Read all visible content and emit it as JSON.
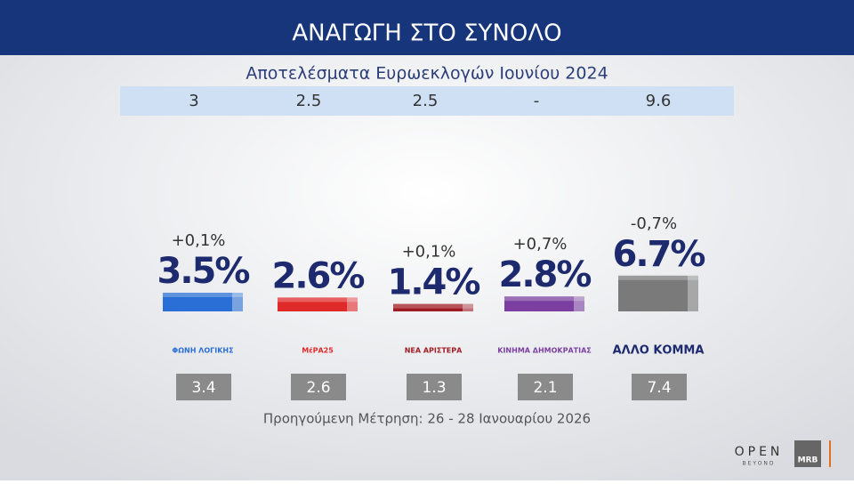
{
  "chart_data": {
    "type": "bar",
    "title": "ΑΝΑΓΩΓΗ ΣΤΟ ΣΥΝΟΛΟ",
    "subtitle": "Αποτελέσματα Ευρωεκλογών Ιουνίου 2024",
    "euro_results": [
      "3",
      "2.5",
      "2.5",
      "-",
      "9.6"
    ],
    "categories": [
      "ΦΩΝΗ ΛΟΓΙΚΗΣ",
      "ΜέΡΑ25",
      "ΝΕΑ ΑΡΙΣΤΕΡΑ",
      "ΚΙΝΗΜΑ ΔΗΜΟΚΡΑΤΙΑΣ",
      "ΑΛΛΟ ΚΟΜΜΑ"
    ],
    "values": [
      3.5,
      2.6,
      1.4,
      2.8,
      6.7
    ],
    "value_labels": [
      "3.5%",
      "2.6%",
      "1.4%",
      "2.8%",
      "6.7%"
    ],
    "change_labels": [
      "+0,1%",
      "",
      "+0,1%",
      "+0,7%",
      "-0,7%"
    ],
    "previous": [
      3.4,
      2.6,
      1.3,
      2.1,
      7.4
    ],
    "colors": [
      "#2a6fd6",
      "#e02a2a",
      "#a01c24",
      "#7a3fa0",
      "#7a7a7a"
    ],
    "footnote": "Προηγούμενη Μέτρηση: 26 - 28 Ιανουαρίου 2026",
    "logos": [
      "OPEN",
      "BEYOND",
      "MRB"
    ]
  }
}
